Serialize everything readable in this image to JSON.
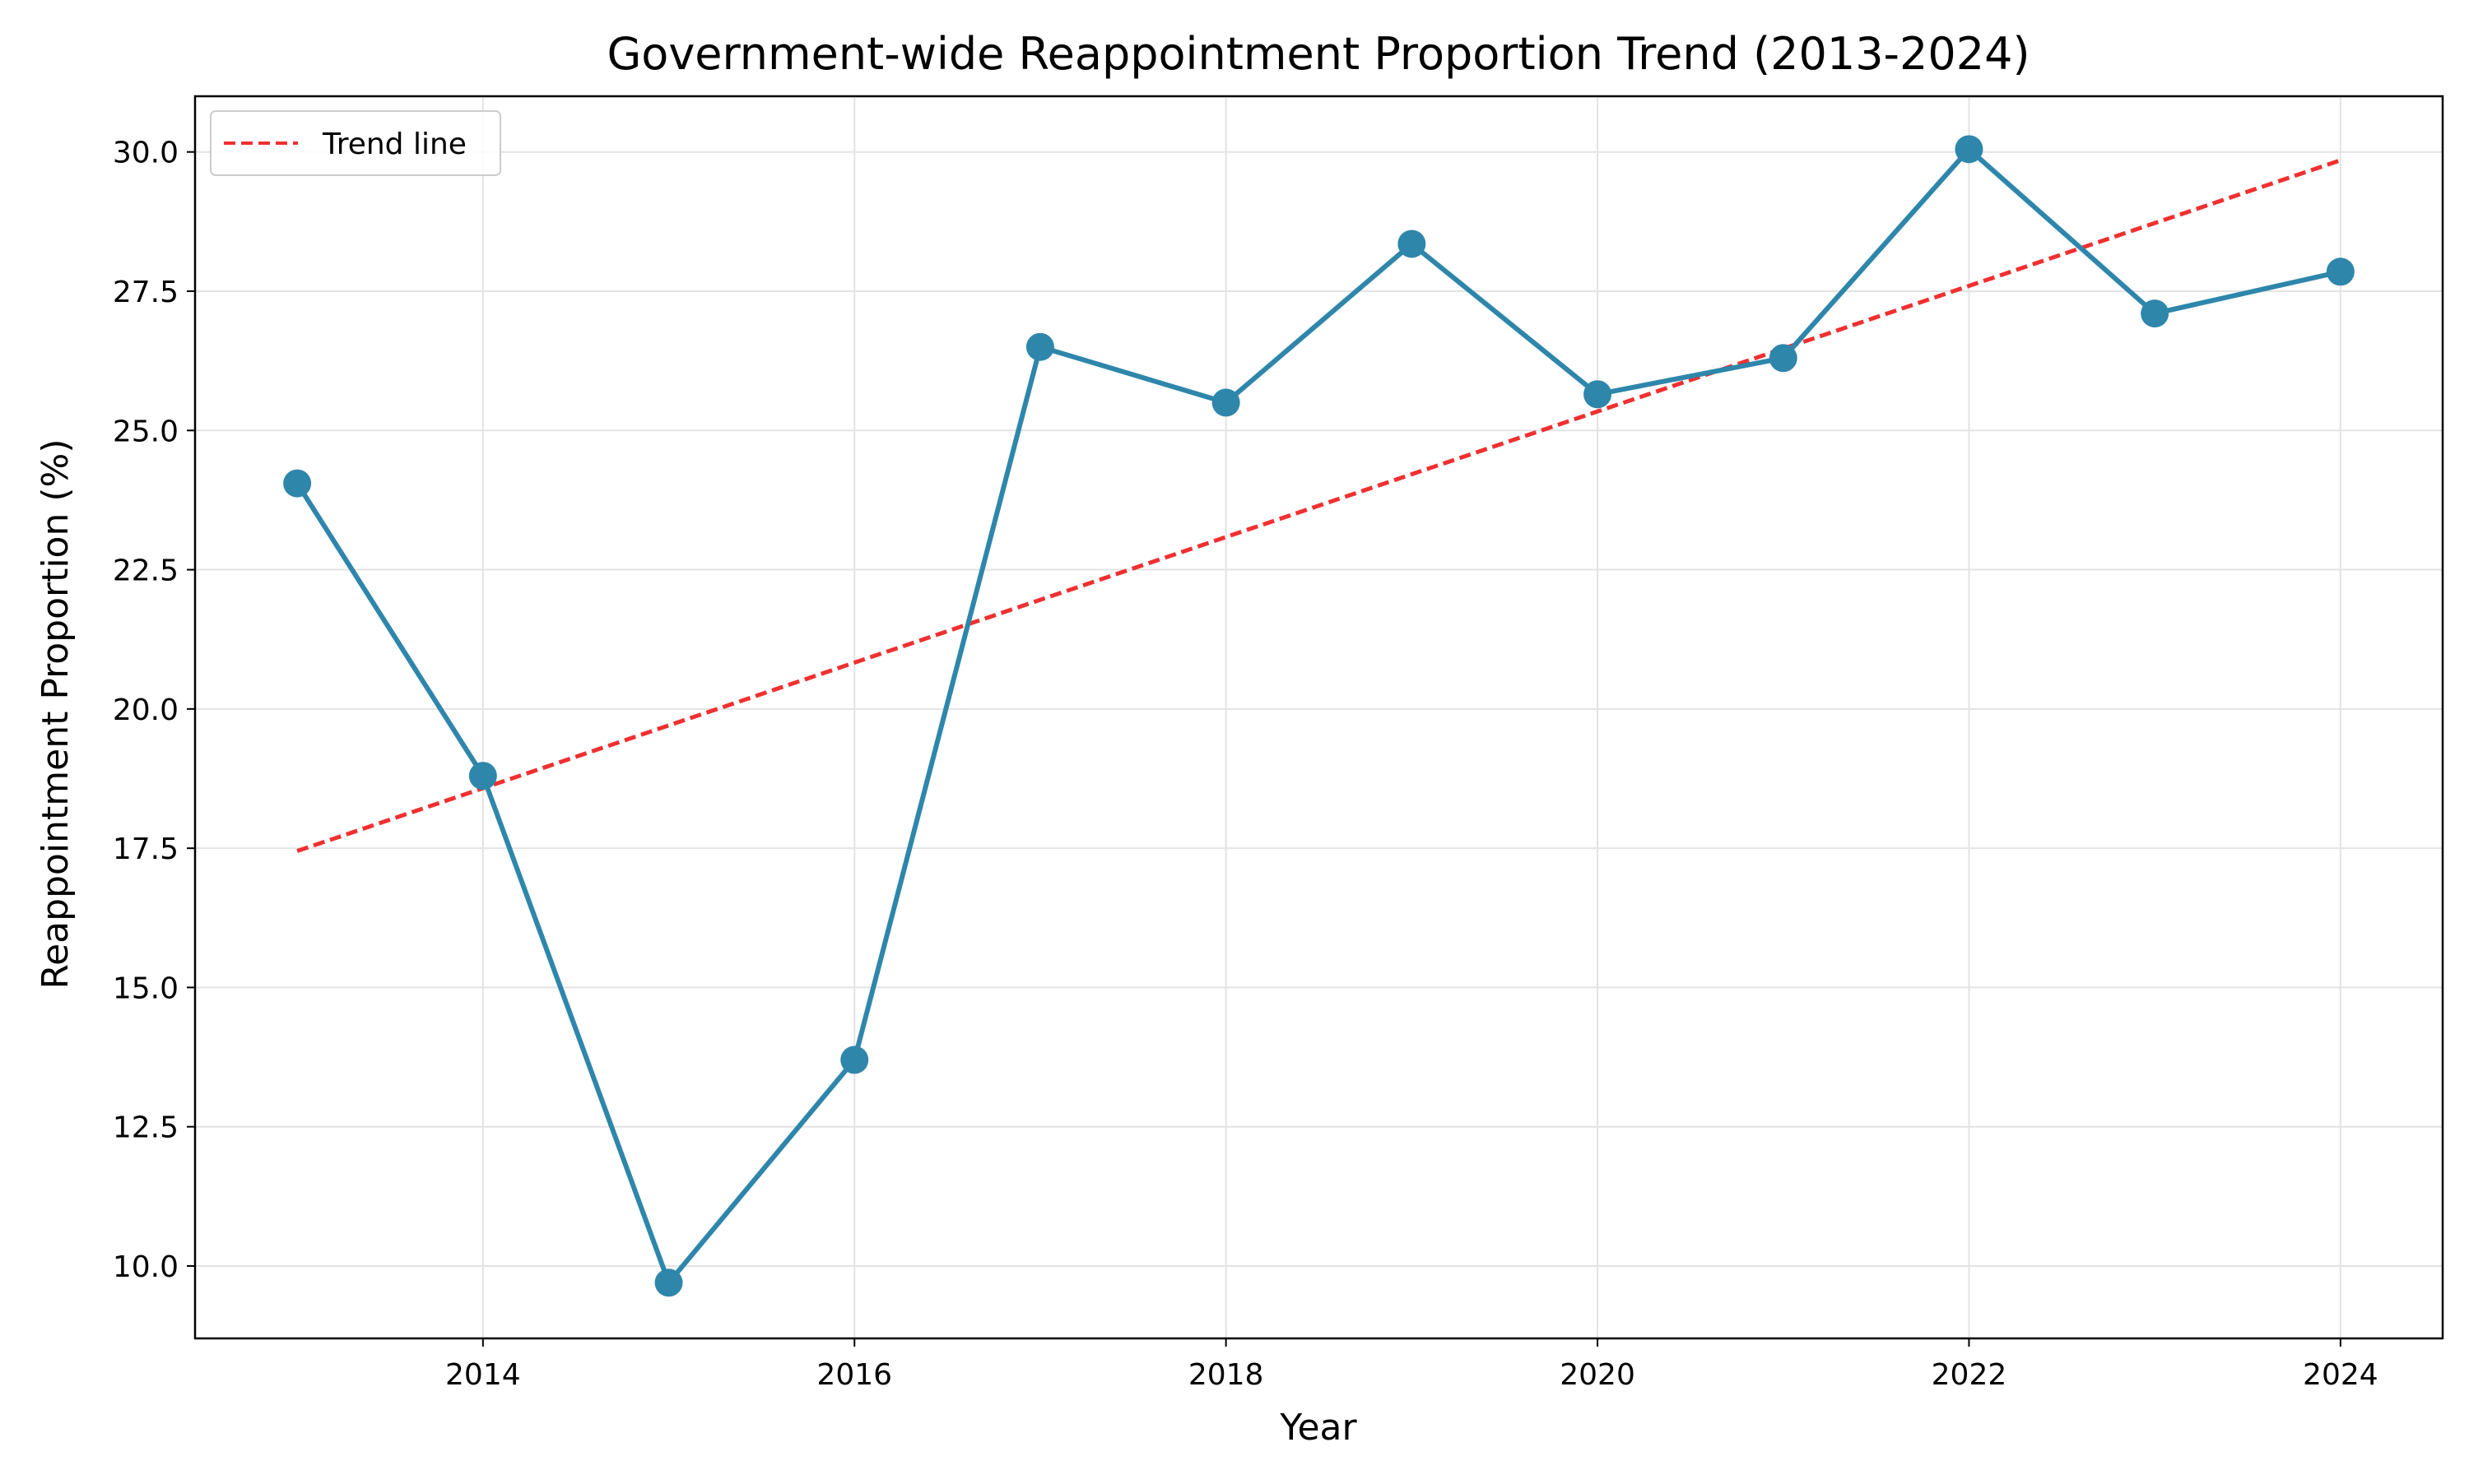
{
  "chart_data": {
    "type": "line",
    "title": "Government-wide Reappointment Proportion Trend (2013-2024)",
    "xlabel": "Year",
    "ylabel": "Reappointment Proportion (%)",
    "x": [
      2013,
      2014,
      2015,
      2016,
      2017,
      2018,
      2019,
      2020,
      2021,
      2022,
      2023,
      2024
    ],
    "series": [
      {
        "values": [
          24.05,
          18.8,
          9.7,
          13.7,
          26.5,
          25.5,
          28.35,
          25.65,
          26.3,
          30.05,
          27.1,
          27.85
        ],
        "color": "#2e86ab",
        "style": "solid",
        "marker": "circle"
      },
      {
        "name": "Trend line",
        "x": [
          2013,
          2024
        ],
        "values": [
          17.45,
          29.85
        ],
        "color": "#f03030",
        "style": "dashed"
      }
    ],
    "xlim": [
      2012.45,
      2024.55
    ],
    "ylim": [
      8.7,
      31.0
    ],
    "xticks": [
      2014,
      2016,
      2018,
      2020,
      2022,
      2024
    ],
    "yticks": [
      10.0,
      12.5,
      15.0,
      17.5,
      20.0,
      22.5,
      25.0,
      27.5,
      30.0
    ],
    "ytick_labels": [
      "10.0",
      "12.5",
      "15.0",
      "17.5",
      "20.0",
      "22.5",
      "25.0",
      "27.5",
      "30.0"
    ],
    "grid": true,
    "legend_position": "top-left"
  }
}
